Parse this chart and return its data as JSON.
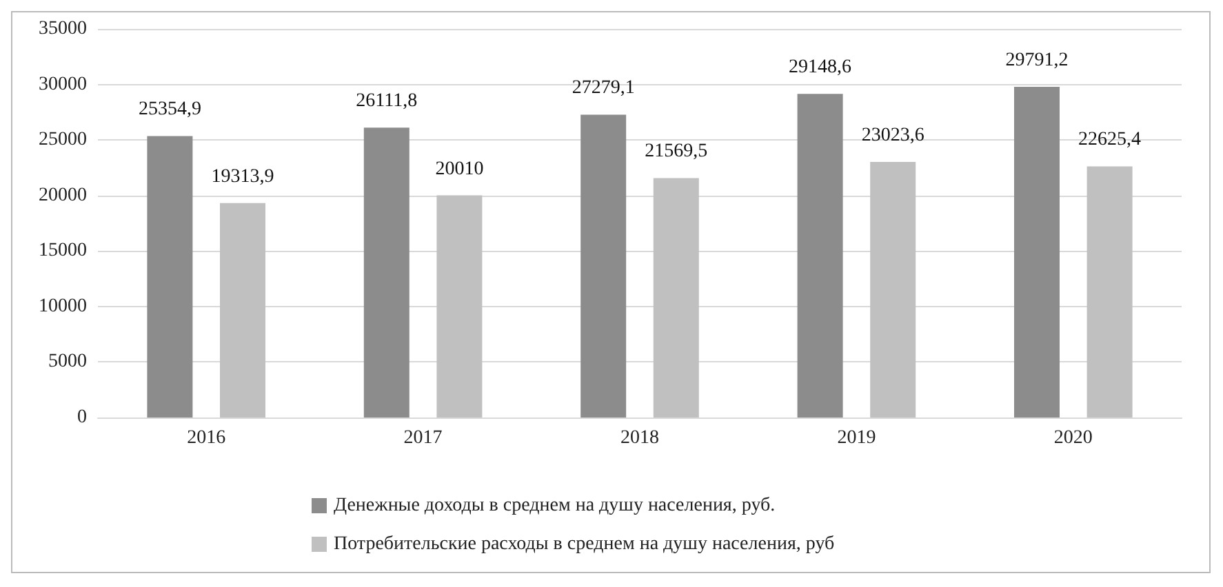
{
  "chart_data": {
    "type": "bar",
    "categories": [
      "2016",
      "2017",
      "2018",
      "2019",
      "2020"
    ],
    "series": [
      {
        "name": "Денежные доходы в среднем на душу населения, руб.",
        "color": "#8c8c8c",
        "values": [
          25354.9,
          26111.8,
          27279.1,
          29148.6,
          29791.2
        ],
        "value_labels": [
          "25354,9",
          "26111,8",
          "27279,1",
          "29148,6",
          "29791,2"
        ]
      },
      {
        "name": "Потребительские расходы в среднем на душу населения, руб",
        "color": "#c0c0c0",
        "values": [
          19313.9,
          20010,
          21569.5,
          23023.6,
          22625.4
        ],
        "value_labels": [
          "19313,9",
          "20010",
          "21569,5",
          "23023,6",
          "22625,4"
        ]
      }
    ],
    "ylim": [
      0,
      35000
    ],
    "yticks": [
      0,
      5000,
      10000,
      15000,
      20000,
      25000,
      30000,
      35000
    ],
    "grid": "y",
    "legend": "bottom"
  }
}
